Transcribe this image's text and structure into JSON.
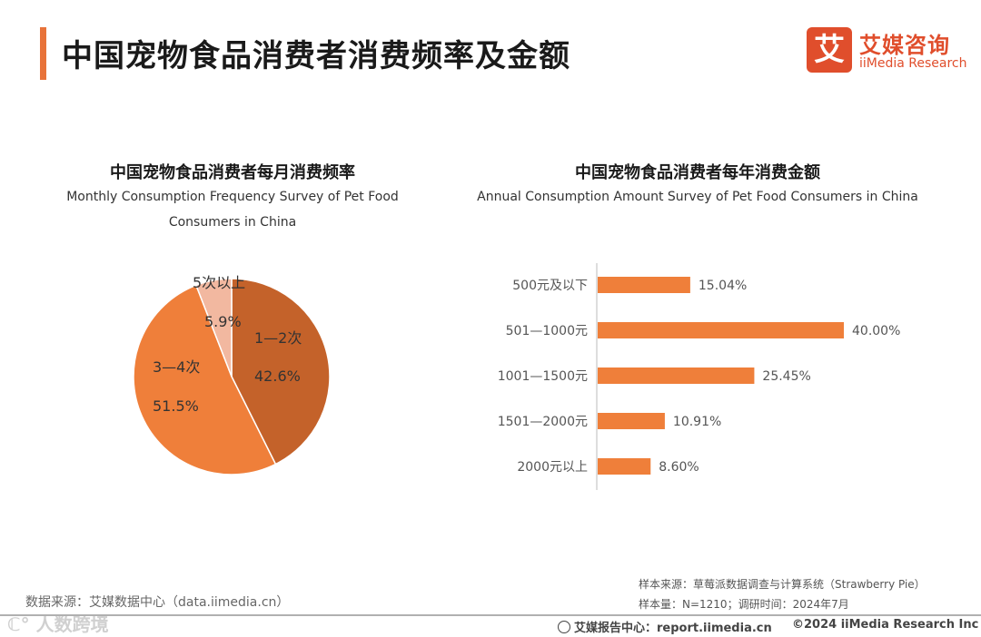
{
  "header": {
    "title": "中国宠物食品消费者消费频率及金额",
    "logo_mark": "艾",
    "logo_cn": "艾媒咨询",
    "logo_en": "iiMedia Research",
    "accent": "#e8733a"
  },
  "chart_data": [
    {
      "type": "pie",
      "title": "中国宠物食品消费者每月消费频率",
      "subtitle_line1": "Monthly Consumption Frequency Survey of Pet Food",
      "subtitle_line2": "Consumers in China",
      "slices": [
        {
          "label": "1—2次",
          "value": 42.6,
          "value_label": "42.6%",
          "color": "#c4622a"
        },
        {
          "label": "3—4次",
          "value": 51.5,
          "value_label": "51.5%",
          "color": "#ef7f3a"
        },
        {
          "label": "5次以上",
          "value": 5.9,
          "value_label": "5.9%",
          "color": "#f2b8a0"
        }
      ]
    },
    {
      "type": "bar",
      "orientation": "horizontal",
      "title": "中国宠物食品消费者每年消费金额",
      "subtitle": "Annual Consumption Amount Survey of Pet Food Consumers in China",
      "categories": [
        "500元及以下",
        "501—1000元",
        "1001—1500元",
        "1501—2000元",
        "2000元以上"
      ],
      "values": [
        15.04,
        40.0,
        25.45,
        10.91,
        8.6
      ],
      "value_labels": [
        "15.04%",
        "40.00%",
        "25.45%",
        "10.91%",
        "8.60%"
      ],
      "color": "#ef7f3a",
      "xlim": [
        0,
        45
      ]
    }
  ],
  "notes": {
    "sample_source": "样本来源：草莓派数据调查与计算系统（Strawberry Pie）",
    "sample_info": "样本量：N=1210；调研时间：2024年7月",
    "data_source": "数据来源：艾媒数据中心（data.iimedia.cn）",
    "watermark": "ℂ° 人数跨境",
    "footer_center": "艾媒报告中心：report.iimedia.cn",
    "footer_right": "©2024  iiMedia Research  Inc"
  }
}
